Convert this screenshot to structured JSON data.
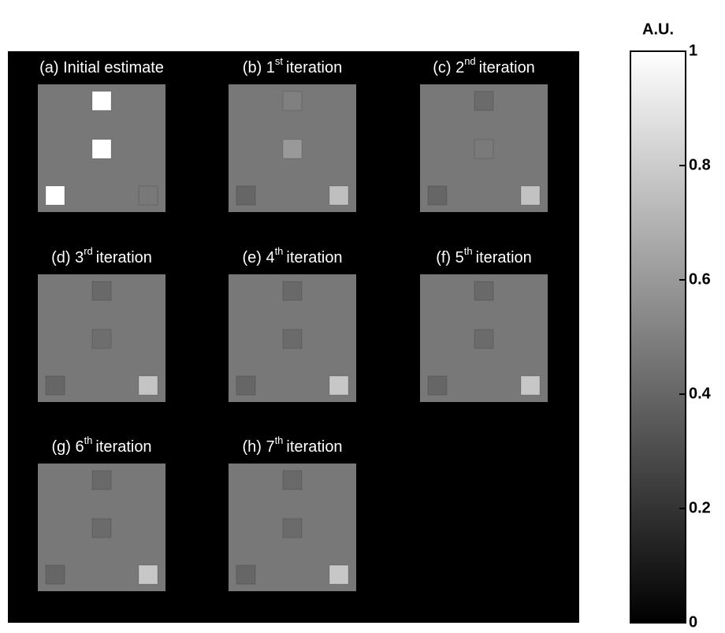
{
  "panels": [
    {
      "label": "(a) Initial estimate",
      "background": 0.47,
      "squares": [
        1,
        1,
        1,
        0.47
      ]
    },
    {
      "label": "(b) 1",
      "sup": "st",
      "suffix": "iteration",
      "background": 0.47,
      "squares": [
        0.5,
        0.6,
        0.4,
        0.75
      ]
    },
    {
      "label": "(c) 2",
      "sup": "nd",
      "suffix": "iteration",
      "background": 0.47,
      "squares": [
        0.42,
        0.48,
        0.4,
        0.76
      ]
    },
    {
      "label": "(d) 3",
      "sup": "rd",
      "suffix": "iteration",
      "background": 0.47,
      "squares": [
        0.41,
        0.43,
        0.4,
        0.77
      ]
    },
    {
      "label": "(e) 4",
      "sup": "th",
      "suffix": "iteration",
      "background": 0.47,
      "squares": [
        0.41,
        0.42,
        0.4,
        0.78
      ]
    },
    {
      "label": "(f) 5",
      "sup": "th",
      "suffix": "iteration",
      "background": 0.47,
      "squares": [
        0.41,
        0.42,
        0.4,
        0.78
      ]
    },
    {
      "label": "(g) 6",
      "sup": "th",
      "suffix": "iteration",
      "background": 0.47,
      "squares": [
        0.41,
        0.42,
        0.4,
        0.78
      ]
    },
    {
      "label": "(h) 7",
      "sup": "th",
      "suffix": "iteration",
      "background": 0.47,
      "squares": [
        0.41,
        0.42,
        0.4,
        0.78
      ]
    }
  ],
  "colorbar": {
    "title": "A.U.",
    "lim": [
      0,
      1
    ],
    "ticks": [
      0,
      0.2,
      0.4,
      0.6,
      0.8,
      1
    ]
  }
}
